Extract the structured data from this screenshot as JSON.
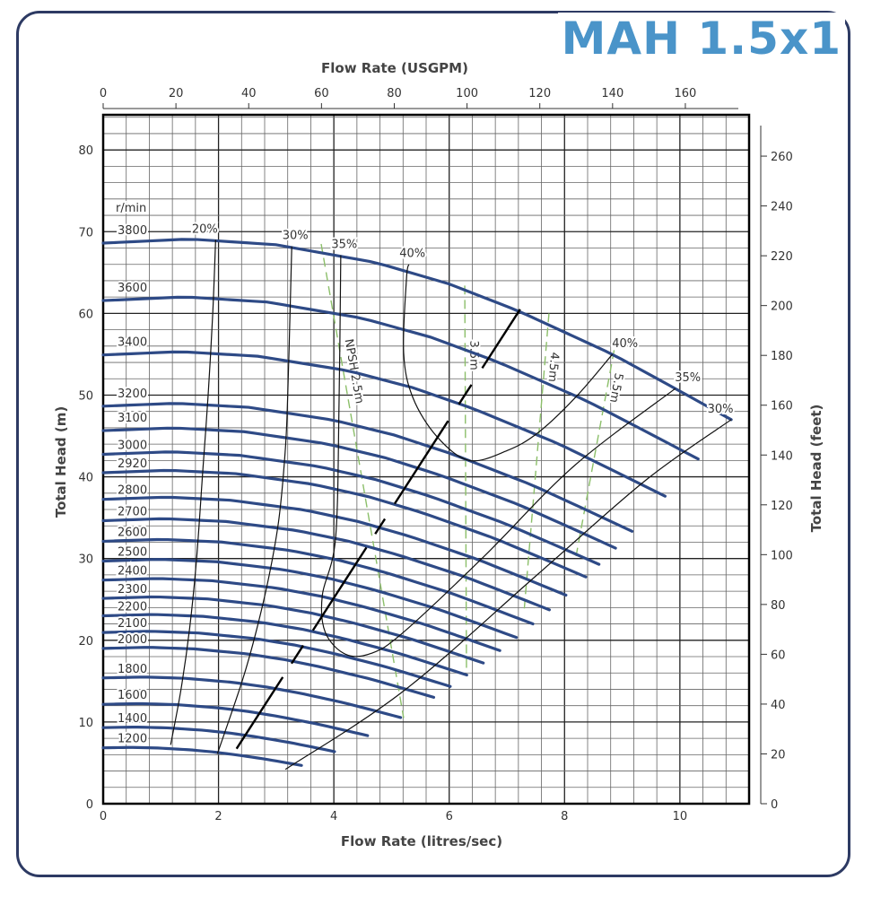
{
  "title": "MAH 1.5x1",
  "chart_data": {
    "type": "line",
    "title": "MAH 1.5x1",
    "xlabel": "Flow Rate (litres/sec)",
    "x2label": "Flow Rate (USGPM)",
    "ylabel": "Total Head (m)",
    "y2label": "Total Head (feet)",
    "xlim": [
      0,
      11.2
    ],
    "ylim": [
      0,
      84.3
    ],
    "grid": true,
    "x_ticks": [
      0,
      2,
      4,
      6,
      8,
      10
    ],
    "x2_ticks": [
      0,
      20,
      40,
      60,
      80,
      100,
      120,
      140,
      160
    ],
    "y_ticks": [
      0,
      10,
      20,
      30,
      40,
      50,
      60,
      70,
      80
    ],
    "y2_ticks": [
      0,
      20,
      40,
      60,
      80,
      100,
      120,
      140,
      160,
      180,
      200,
      220,
      240,
      260
    ],
    "speed_unit": "r/min",
    "reference_speed": 3800,
    "reference_curve": [
      [
        0,
        68.6
      ],
      [
        1.5,
        69.1
      ],
      [
        3,
        68.4
      ],
      [
        4.74,
        66.2
      ],
      [
        6,
        63.6
      ],
      [
        7.2,
        60.3
      ],
      [
        8.83,
        55.0
      ],
      [
        9.92,
        50.8
      ],
      [
        10.89,
        47.0
      ]
    ],
    "speeds": [
      {
        "label": "3800",
        "rpm": 3800
      },
      {
        "label": "3600",
        "rpm": 3600
      },
      {
        "label": "3400",
        "rpm": 3400
      },
      {
        "label": "3200",
        "rpm": 3200
      },
      {
        "label": "3100",
        "rpm": 3100
      },
      {
        "label": "3000",
        "rpm": 3000
      },
      {
        "label": "2920",
        "rpm": 2920
      },
      {
        "label": "2800",
        "rpm": 2800
      },
      {
        "label": "2700",
        "rpm": 2700
      },
      {
        "label": "2600",
        "rpm": 2600
      },
      {
        "label": "2500",
        "rpm": 2500
      },
      {
        "label": "2400",
        "rpm": 2400
      },
      {
        "label": "2300",
        "rpm": 2300
      },
      {
        "label": "2200",
        "rpm": 2200
      },
      {
        "label": "2100",
        "rpm": 2100
      },
      {
        "label": "2000",
        "rpm": 2000
      },
      {
        "label": "1800",
        "rpm": 1800
      },
      {
        "label": "1600",
        "rpm": 1600
      },
      {
        "label": "1400",
        "rpm": 1400
      },
      {
        "label": "1200",
        "rpm": 1200
      }
    ],
    "efficiency_curves": [
      {
        "label": "20%",
        "labels_at": [
          "start"
        ],
        "points": [
          [
            1.95,
            69
          ],
          [
            1.9,
            60
          ],
          [
            1.82,
            50
          ],
          [
            1.73,
            41
          ],
          [
            1.62,
            30
          ],
          [
            1.5,
            21.5
          ],
          [
            1.35,
            14
          ],
          [
            1.17,
            7.2
          ]
        ]
      },
      {
        "label": "30%",
        "labels_at": [
          "start"
        ],
        "points": [
          [
            3.27,
            68.2
          ],
          [
            3.24,
            60
          ],
          [
            3.2,
            50
          ],
          [
            3.16,
            43.5
          ],
          [
            3.05,
            35
          ],
          [
            2.88,
            28
          ],
          [
            2.65,
            21
          ],
          [
            2.41,
            15
          ],
          [
            1.98,
            6.1
          ]
        ]
      },
      {
        "label": "30%",
        "labels_at": [
          "end"
        ],
        "points": [
          [
            3.16,
            4.2
          ],
          [
            5.21,
            13.8
          ],
          [
            7.54,
            28.1
          ],
          [
            9.41,
            39.6
          ],
          [
            10.89,
            47
          ]
        ]
      },
      {
        "label": "35%",
        "labels_at": [
          "start",
          "end"
        ],
        "points": [
          [
            4.12,
            67.1
          ],
          [
            4.09,
            49
          ],
          [
            4.03,
            32.5
          ],
          [
            3.8,
            25.5
          ],
          [
            3.85,
            21
          ],
          [
            4.2,
            18.3
          ],
          [
            4.65,
            18.4
          ],
          [
            5.21,
            21
          ],
          [
            6.61,
            30.3
          ],
          [
            8.16,
            41.3
          ],
          [
            9.92,
            50.8
          ]
        ]
      },
      {
        "label": "40%",
        "labels_at": [
          "start",
          "end"
        ],
        "points": [
          [
            5.3,
            66.0
          ],
          [
            5.26,
            64.3
          ],
          [
            5.21,
            55.2
          ],
          [
            5.37,
            49.7
          ],
          [
            5.79,
            44.9
          ],
          [
            6.35,
            42.0
          ],
          [
            7.0,
            43.2
          ],
          [
            7.54,
            45.4
          ],
          [
            8.2,
            49.8
          ],
          [
            8.83,
            55
          ]
        ]
      }
    ],
    "npsh_curves": [
      {
        "label": "NPSH 2.5m",
        "points": [
          [
            3.78,
            68.5
          ],
          [
            5.21,
            10.5
          ]
        ]
      },
      {
        "label": "3.5m",
        "points": [
          [
            6.27,
            63.4
          ],
          [
            6.3,
            16
          ]
        ]
      },
      {
        "label": "4.5m",
        "points": [
          [
            7.73,
            60
          ],
          [
            7.3,
            23.7
          ]
        ]
      },
      {
        "label": "5.5m",
        "points": [
          [
            8.86,
            55.5
          ],
          [
            8.2,
            30.3
          ]
        ]
      }
    ],
    "limit_line": [
      [
        7.23,
        60.5
      ],
      [
        2.1,
        4.4
      ]
    ],
    "colors": {
      "speed": "#2e4a86",
      "efficiency": "#111111",
      "npsh": "#8cbf6a",
      "title": "#4a94c9",
      "frame": "#2d3a63"
    }
  }
}
